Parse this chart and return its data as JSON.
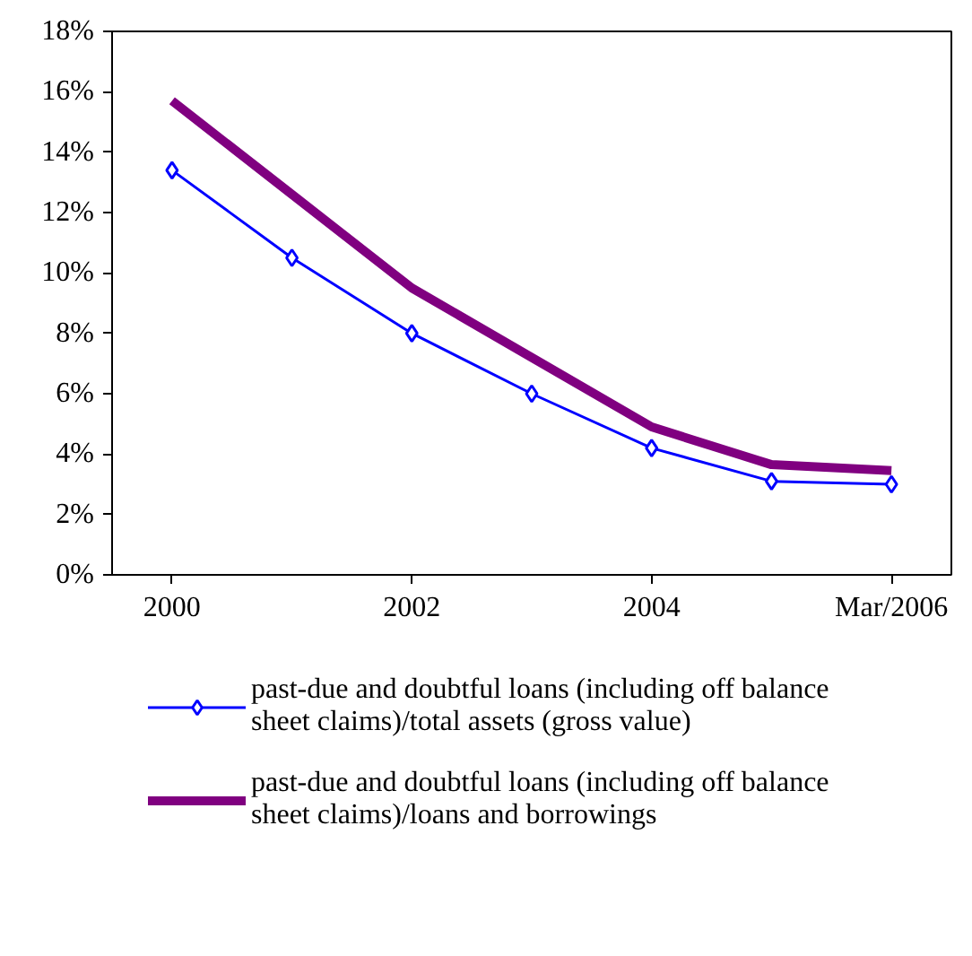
{
  "chart_data": {
    "type": "line",
    "categories": [
      "2000",
      null,
      "2002",
      null,
      "2004",
      null,
      "Mar/2006"
    ],
    "ylim": [
      0,
      18
    ],
    "yticks": [
      {
        "value": 0,
        "label": "0%"
      },
      {
        "value": 2,
        "label": "2%"
      },
      {
        "value": 4,
        "label": "4%"
      },
      {
        "value": 6,
        "label": "6%"
      },
      {
        "value": 8,
        "label": "8%"
      },
      {
        "value": 10,
        "label": "10%"
      },
      {
        "value": 12,
        "label": "12%"
      },
      {
        "value": 14,
        "label": "14%"
      },
      {
        "value": 16,
        "label": "16%"
      },
      {
        "value": 18,
        "label": "18%"
      }
    ],
    "grid": false,
    "legend": "bottom",
    "series": [
      {
        "name": "past-due and doubtful loans (including off balance sheet claims)/total assets (gross value)",
        "color": "#0000ff",
        "marker": "diamond",
        "values": [
          13.4,
          10.5,
          8.0,
          6.0,
          4.2,
          3.1,
          3.0
        ]
      },
      {
        "name": "past-due and doubtful loans (including off balance sheet claims)/loans and borrowings",
        "color": "#800080",
        "marker": "none",
        "values": [
          15.7,
          12.6,
          9.5,
          7.2,
          4.9,
          3.65,
          3.45
        ]
      }
    ]
  }
}
